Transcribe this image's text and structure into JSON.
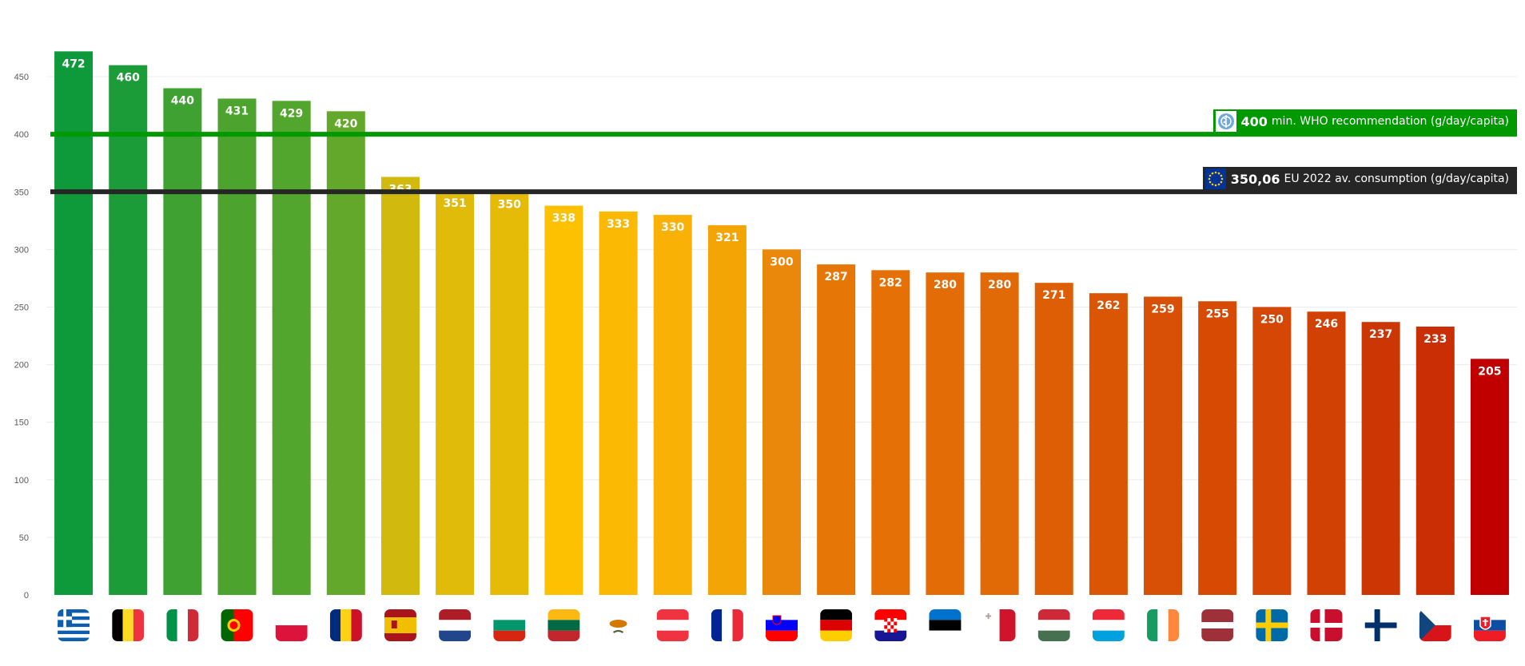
{
  "chart_data": {
    "type": "bar",
    "categories": [
      "Greece",
      "Belgium",
      "Italy",
      "Portugal",
      "Poland",
      "Romania",
      "Spain",
      "Netherlands",
      "Bulgaria",
      "Lithuania",
      "Cyprus",
      "Austria",
      "France",
      "Slovenia",
      "Germany",
      "Croatia",
      "Estonia",
      "Malta",
      "Hungary",
      "Luxembourg",
      "Ireland",
      "Latvia",
      "Sweden",
      "Denmark",
      "Finland",
      "Czechia",
      "Slovakia"
    ],
    "values": [
      472,
      460,
      440,
      431,
      429,
      420,
      363,
      351,
      350,
      338,
      333,
      330,
      321,
      300,
      287,
      282,
      280,
      280,
      271,
      262,
      259,
      255,
      250,
      246,
      237,
      233,
      205
    ],
    "data_labels": [
      "472",
      "460",
      "440",
      "431",
      "429",
      "420",
      "363",
      "351",
      "350",
      "338",
      "333",
      "330",
      "321",
      "300",
      "287",
      "282",
      "280",
      "280",
      "271",
      "262",
      "259",
      "255",
      "250",
      "246",
      "237",
      "233",
      "205"
    ],
    "bar_colors": [
      "#0e9a3b",
      "#1c9c38",
      "#3ea132",
      "#4ca42f",
      "#52a52d",
      "#63a82a",
      "#d2b90d",
      "#e1bb09",
      "#e6bb08",
      "#fdc101",
      "#fbb903",
      "#f8b104",
      "#f3a505",
      "#e9880a",
      "#e67706",
      "#e47006",
      "#e36c06",
      "#e26a06",
      "#de5e06",
      "#da5605",
      "#d85005",
      "#d64a04",
      "#d44704",
      "#d14104",
      "#cc3504",
      "#c92e04",
      "#c00000"
    ],
    "flags": [
      "flag-gr",
      "flag-be",
      "flag-it",
      "flag-pt",
      "flag-pl",
      "flag-ro",
      "flag-es",
      "flag-nl",
      "flag-bg",
      "flag-lt",
      "flag-cy",
      "flag-at",
      "flag-fr",
      "flag-si",
      "flag-de",
      "flag-hr",
      "flag-ee",
      "flag-mt",
      "flag-hu",
      "flag-lu",
      "flag-ie",
      "flag-lv",
      "flag-se",
      "flag-dk",
      "flag-fi",
      "flag-cz",
      "flag-sk"
    ],
    "ylim": [
      0,
      475
    ],
    "yticks": [
      0,
      50,
      100,
      150,
      200,
      250,
      300,
      350,
      400,
      450
    ],
    "grid": true,
    "legend": "none",
    "reference_lines": [
      {
        "value": 400,
        "value_label": "400",
        "text": "min. WHO recommendation  (g/day/capita)",
        "color": "#009900",
        "icon": "who-emblem-icon"
      },
      {
        "value": 350.06,
        "value_label": "350,06",
        "text": "EU 2022 av. consumption (g/day/capita)",
        "color": "#262626",
        "icon": "eu-flag-icon"
      }
    ]
  }
}
